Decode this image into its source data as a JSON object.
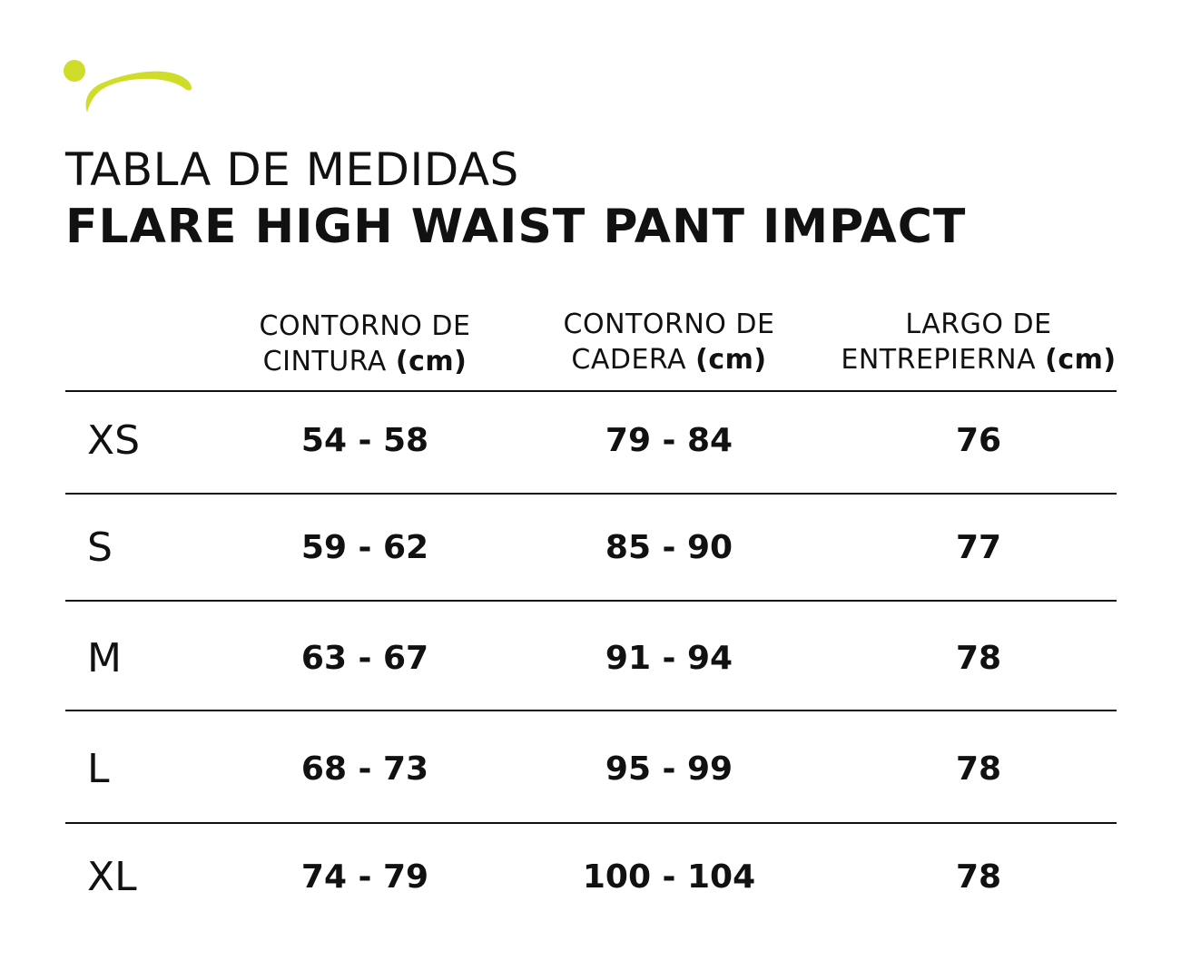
{
  "brand": {
    "accent_color": "#cfdc2a",
    "logo_icon": "swoosh-dot-logo"
  },
  "title": {
    "line1": "TABLA DE MEDIDAS",
    "line2": "FLARE HIGH WAIST PANT IMPACT"
  },
  "columns": [
    {
      "line1": "CONTORNO DE",
      "line2": "CINTURA",
      "unit": "(cm)"
    },
    {
      "line1": "CONTORNO DE",
      "line2": "CADERA",
      "unit": "(cm)"
    },
    {
      "line1": "LARGO DE",
      "line2": "ENTREPIERNA",
      "unit": "(cm)"
    }
  ],
  "rows": [
    {
      "size": "XS",
      "cintura": "54 - 58",
      "cadera": "79 - 84",
      "entrepierna": "76"
    },
    {
      "size": "S",
      "cintura": "59 - 62",
      "cadera": "85 - 90",
      "entrepierna": "77"
    },
    {
      "size": "M",
      "cintura": "63 - 67",
      "cadera": "91 - 94",
      "entrepierna": "78"
    },
    {
      "size": "L",
      "cintura": "68 - 73",
      "cadera": "95 - 99",
      "entrepierna": "78"
    },
    {
      "size": "XL",
      "cintura": "74 - 79",
      "cadera": "100 - 104",
      "entrepierna": "78"
    }
  ]
}
